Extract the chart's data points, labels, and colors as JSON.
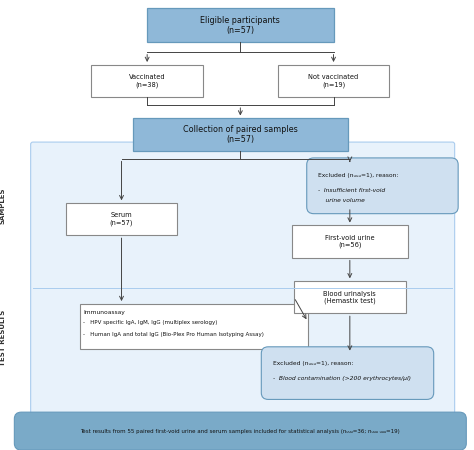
{
  "blue_box_face": "#8fb8d8",
  "white_box_face": "#ffffff",
  "rounded_box_face": "#cfe0f0",
  "bottom_bar_face": "#7aaac8",
  "panel_face": "#e8f2fb",
  "panel_edge": "#aaccee",
  "box_edge_gray": "#888888",
  "box_edge_blue": "#6699bb",
  "arrow_color": "#444444",
  "text_dark": "#111111",
  "eligible_text": "Eligible participants\n(n=57)",
  "vaccinated_text": "Vaccinated\n(n=38)",
  "not_vaccinated_text": "Not vaccinated\n(n=19)",
  "collection_text": "Collection of paired samples\n(n=57)",
  "excluded1_line1": "Excluded (n",
  "excluded1_line2": "=1), reason:",
  "excluded1_italic": "-  Insufficient first-void\n    urine volume",
  "serum_text": "Serum\n(n=57)",
  "first_void_text": "First-void urine\n(n=56)",
  "immuno_title": "Immunoassay",
  "immuno_line1": "-   HPV specific IgA, IgM, IgG (multiplex serology)",
  "immuno_line2": "-   Human IgA and total IgG (Bio-Plex Pro Human Isotyping Assay)",
  "blood_text": "Blood urinalysis\n(Hemastix test)",
  "excluded2_line1": "Excluded (n",
  "excluded2_line2": "=1), reason:",
  "excluded2_italic": "-  Blood contamination (>200 erythrocytes/μl)",
  "bottom_text": "Test results from 55 paired first-void urine and serum samples included for statistical analysis (n",
  "bottom_sub1": "serum",
  "bottom_mid": "=36; n",
  "bottom_sub2": "first-void urine",
  "bottom_end": "=19)",
  "samples_label": "SAMPLES",
  "test_results_label": "TEST RESULTS"
}
